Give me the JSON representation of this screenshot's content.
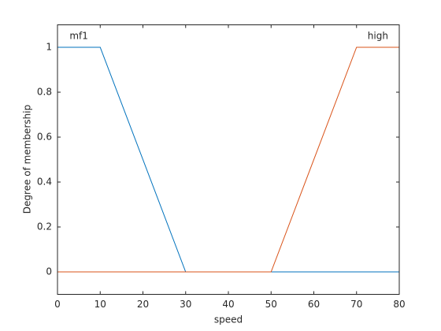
{
  "chart_data": {
    "type": "line",
    "xlabel": "speed",
    "ylabel": "Degree of membership",
    "series": [
      {
        "name": "mf1",
        "color": "#0072bd",
        "x": [
          0,
          10,
          30,
          80
        ],
        "values": [
          1,
          1,
          0,
          0
        ]
      },
      {
        "name": "high",
        "color": "#d95319",
        "x": [
          0,
          50,
          70,
          80
        ],
        "values": [
          0,
          0,
          1,
          1
        ]
      }
    ],
    "xlim": [
      0,
      80
    ],
    "xticks": [
      0,
      10,
      20,
      30,
      40,
      50,
      60,
      70,
      80
    ],
    "ylim": [
      -0.1,
      1.1
    ],
    "yticks": [
      0,
      0.2,
      0.4,
      0.6,
      0.8,
      1
    ]
  }
}
